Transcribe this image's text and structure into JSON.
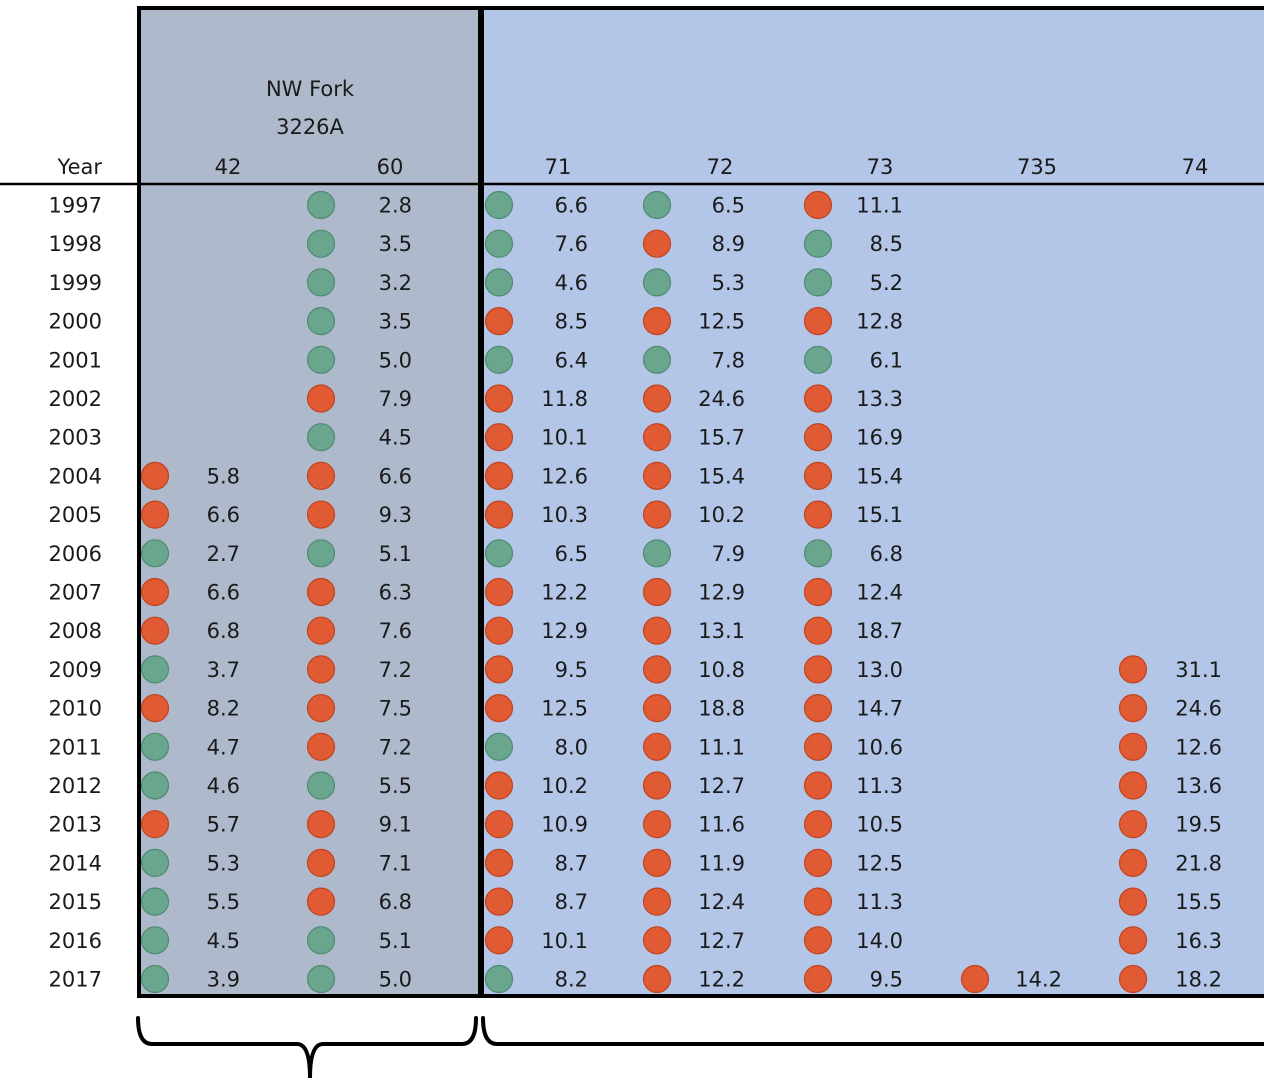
{
  "chart_data": {
    "type": "table",
    "row_header": "Year",
    "group_label_lines": [
      "NW Fork",
      "3226A"
    ],
    "colors": {
      "green": "#6aa58e",
      "red": "#e05a33",
      "gray_panel": "#aebacc",
      "blue_panel": "#b3c6e7"
    },
    "columns": [
      {
        "key": "c42",
        "label": "42"
      },
      {
        "key": "c60",
        "label": "60"
      },
      {
        "key": "c71",
        "label": "71"
      },
      {
        "key": "c72",
        "label": "72"
      },
      {
        "key": "c73",
        "label": "73"
      },
      {
        "key": "c735",
        "label": "735"
      },
      {
        "key": "c74",
        "label": "74"
      }
    ],
    "rows": [
      {
        "year": "1997",
        "cells": [
          null,
          {
            "v": "2.8",
            "c": "green"
          },
          {
            "v": "6.6",
            "c": "green"
          },
          {
            "v": "6.5",
            "c": "green"
          },
          {
            "v": "11.1",
            "c": "red"
          },
          null,
          null
        ]
      },
      {
        "year": "1998",
        "cells": [
          null,
          {
            "v": "3.5",
            "c": "green"
          },
          {
            "v": "7.6",
            "c": "green"
          },
          {
            "v": "8.9",
            "c": "red"
          },
          {
            "v": "8.5",
            "c": "green"
          },
          null,
          null
        ]
      },
      {
        "year": "1999",
        "cells": [
          null,
          {
            "v": "3.2",
            "c": "green"
          },
          {
            "v": "4.6",
            "c": "green"
          },
          {
            "v": "5.3",
            "c": "green"
          },
          {
            "v": "5.2",
            "c": "green"
          },
          null,
          null
        ]
      },
      {
        "year": "2000",
        "cells": [
          null,
          {
            "v": "3.5",
            "c": "green"
          },
          {
            "v": "8.5",
            "c": "red"
          },
          {
            "v": "12.5",
            "c": "red"
          },
          {
            "v": "12.8",
            "c": "red"
          },
          null,
          null
        ]
      },
      {
        "year": "2001",
        "cells": [
          null,
          {
            "v": "5.0",
            "c": "green"
          },
          {
            "v": "6.4",
            "c": "green"
          },
          {
            "v": "7.8",
            "c": "green"
          },
          {
            "v": "6.1",
            "c": "green"
          },
          null,
          null
        ]
      },
      {
        "year": "2002",
        "cells": [
          null,
          {
            "v": "7.9",
            "c": "red"
          },
          {
            "v": "11.8",
            "c": "red"
          },
          {
            "v": "24.6",
            "c": "red"
          },
          {
            "v": "13.3",
            "c": "red"
          },
          null,
          null
        ]
      },
      {
        "year": "2003",
        "cells": [
          null,
          {
            "v": "4.5",
            "c": "green"
          },
          {
            "v": "10.1",
            "c": "red"
          },
          {
            "v": "15.7",
            "c": "red"
          },
          {
            "v": "16.9",
            "c": "red"
          },
          null,
          null
        ]
      },
      {
        "year": "2004",
        "cells": [
          {
            "v": "5.8",
            "c": "red"
          },
          {
            "v": "6.6",
            "c": "red"
          },
          {
            "v": "12.6",
            "c": "red"
          },
          {
            "v": "15.4",
            "c": "red"
          },
          {
            "v": "15.4",
            "c": "red"
          },
          null,
          null
        ]
      },
      {
        "year": "2005",
        "cells": [
          {
            "v": "6.6",
            "c": "red"
          },
          {
            "v": "9.3",
            "c": "red"
          },
          {
            "v": "10.3",
            "c": "red"
          },
          {
            "v": "10.2",
            "c": "red"
          },
          {
            "v": "15.1",
            "c": "red"
          },
          null,
          null
        ]
      },
      {
        "year": "2006",
        "cells": [
          {
            "v": "2.7",
            "c": "green"
          },
          {
            "v": "5.1",
            "c": "green"
          },
          {
            "v": "6.5",
            "c": "green"
          },
          {
            "v": "7.9",
            "c": "green"
          },
          {
            "v": "6.8",
            "c": "green"
          },
          null,
          null
        ]
      },
      {
        "year": "2007",
        "cells": [
          {
            "v": "6.6",
            "c": "red"
          },
          {
            "v": "6.3",
            "c": "red"
          },
          {
            "v": "12.2",
            "c": "red"
          },
          {
            "v": "12.9",
            "c": "red"
          },
          {
            "v": "12.4",
            "c": "red"
          },
          null,
          null
        ]
      },
      {
        "year": "2008",
        "cells": [
          {
            "v": "6.8",
            "c": "red"
          },
          {
            "v": "7.6",
            "c": "red"
          },
          {
            "v": "12.9",
            "c": "red"
          },
          {
            "v": "13.1",
            "c": "red"
          },
          {
            "v": "18.7",
            "c": "red"
          },
          null,
          null
        ]
      },
      {
        "year": "2009",
        "cells": [
          {
            "v": "3.7",
            "c": "green"
          },
          {
            "v": "7.2",
            "c": "red"
          },
          {
            "v": "9.5",
            "c": "red"
          },
          {
            "v": "10.8",
            "c": "red"
          },
          {
            "v": "13.0",
            "c": "red"
          },
          null,
          {
            "v": "31.1",
            "c": "red"
          }
        ]
      },
      {
        "year": "2010",
        "cells": [
          {
            "v": "8.2",
            "c": "red"
          },
          {
            "v": "7.5",
            "c": "red"
          },
          {
            "v": "12.5",
            "c": "red"
          },
          {
            "v": "18.8",
            "c": "red"
          },
          {
            "v": "14.7",
            "c": "red"
          },
          null,
          {
            "v": "24.6",
            "c": "red"
          }
        ]
      },
      {
        "year": "2011",
        "cells": [
          {
            "v": "4.7",
            "c": "green"
          },
          {
            "v": "7.2",
            "c": "red"
          },
          {
            "v": "8.0",
            "c": "green"
          },
          {
            "v": "11.1",
            "c": "red"
          },
          {
            "v": "10.6",
            "c": "red"
          },
          null,
          {
            "v": "12.6",
            "c": "red"
          }
        ]
      },
      {
        "year": "2012",
        "cells": [
          {
            "v": "4.6",
            "c": "green"
          },
          {
            "v": "5.5",
            "c": "green"
          },
          {
            "v": "10.2",
            "c": "red"
          },
          {
            "v": "12.7",
            "c": "red"
          },
          {
            "v": "11.3",
            "c": "red"
          },
          null,
          {
            "v": "13.6",
            "c": "red"
          }
        ]
      },
      {
        "year": "2013",
        "cells": [
          {
            "v": "5.7",
            "c": "red"
          },
          {
            "v": "9.1",
            "c": "red"
          },
          {
            "v": "10.9",
            "c": "red"
          },
          {
            "v": "11.6",
            "c": "red"
          },
          {
            "v": "10.5",
            "c": "red"
          },
          null,
          {
            "v": "19.5",
            "c": "red"
          }
        ]
      },
      {
        "year": "2014",
        "cells": [
          {
            "v": "5.3",
            "c": "green"
          },
          {
            "v": "7.1",
            "c": "red"
          },
          {
            "v": "8.7",
            "c": "red"
          },
          {
            "v": "11.9",
            "c": "red"
          },
          {
            "v": "12.5",
            "c": "red"
          },
          null,
          {
            "v": "21.8",
            "c": "red"
          }
        ]
      },
      {
        "year": "2015",
        "cells": [
          {
            "v": "5.5",
            "c": "green"
          },
          {
            "v": "6.8",
            "c": "red"
          },
          {
            "v": "8.7",
            "c": "red"
          },
          {
            "v": "12.4",
            "c": "red"
          },
          {
            "v": "11.3",
            "c": "red"
          },
          null,
          {
            "v": "15.5",
            "c": "red"
          }
        ]
      },
      {
        "year": "2016",
        "cells": [
          {
            "v": "4.5",
            "c": "green"
          },
          {
            "v": "5.1",
            "c": "green"
          },
          {
            "v": "10.1",
            "c": "red"
          },
          {
            "v": "12.7",
            "c": "red"
          },
          {
            "v": "14.0",
            "c": "red"
          },
          null,
          {
            "v": "16.3",
            "c": "red"
          }
        ]
      },
      {
        "year": "2017",
        "cells": [
          {
            "v": "3.9",
            "c": "green"
          },
          {
            "v": "5.0",
            "c": "green"
          },
          {
            "v": "8.2",
            "c": "green"
          },
          {
            "v": "12.2",
            "c": "red"
          },
          {
            "v": "9.5",
            "c": "red"
          },
          {
            "v": "14.2",
            "c": "red"
          },
          {
            "v": "18.2",
            "c": "red"
          }
        ]
      }
    ]
  }
}
